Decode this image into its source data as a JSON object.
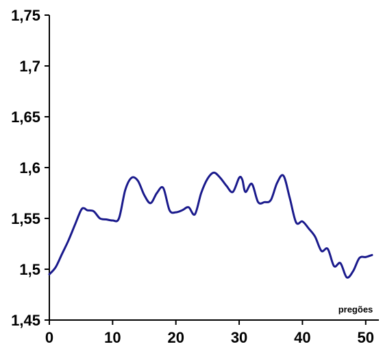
{
  "chart_data": {
    "type": "line",
    "title": "",
    "xlabel": "pregões",
    "ylabel": "",
    "xlim": [
      0,
      51
    ],
    "ylim": [
      1.45,
      1.75
    ],
    "grid": false,
    "legend": "none",
    "x_ticks": [
      {
        "value": 0,
        "label": "0"
      },
      {
        "value": 10,
        "label": "10"
      },
      {
        "value": 20,
        "label": "20"
      },
      {
        "value": 30,
        "label": "30"
      },
      {
        "value": 40,
        "label": "40"
      },
      {
        "value": 50,
        "label": "50"
      }
    ],
    "y_ticks": [
      {
        "value": 1.45,
        "label": "1,45"
      },
      {
        "value": 1.5,
        "label": "1,5"
      },
      {
        "value": 1.55,
        "label": "1,55"
      },
      {
        "value": 1.6,
        "label": "1,6"
      },
      {
        "value": 1.65,
        "label": "1,65"
      },
      {
        "value": 1.7,
        "label": "1,7"
      },
      {
        "value": 1.75,
        "label": "1,75"
      }
    ],
    "series": [
      {
        "color": "#1a1a8c",
        "x": [
          0,
          1,
          2,
          3,
          4,
          5,
          5.5,
          6,
          7,
          8,
          9,
          10,
          11,
          12,
          13,
          14,
          15,
          16,
          17,
          18,
          19,
          20,
          21,
          22,
          23,
          24,
          25,
          26,
          27,
          28,
          29,
          30,
          30.5,
          31,
          32,
          33,
          34,
          35,
          36,
          37,
          38,
          39,
          40,
          41,
          42,
          43,
          44,
          45,
          46,
          47,
          48,
          49,
          50,
          51
        ],
        "y": [
          1.495,
          1.502,
          1.515,
          1.528,
          1.543,
          1.558,
          1.56,
          1.558,
          1.557,
          1.55,
          1.549,
          1.548,
          1.55,
          1.578,
          1.59,
          1.587,
          1.573,
          1.565,
          1.575,
          1.58,
          1.558,
          1.556,
          1.558,
          1.561,
          1.554,
          1.575,
          1.589,
          1.595,
          1.59,
          1.582,
          1.576,
          1.59,
          1.588,
          1.576,
          1.584,
          1.566,
          1.566,
          1.568,
          1.585,
          1.592,
          1.57,
          1.546,
          1.547,
          1.54,
          1.532,
          1.518,
          1.52,
          1.503,
          1.506,
          1.492,
          1.498,
          1.511,
          1.512,
          1.514
        ]
      }
    ]
  }
}
